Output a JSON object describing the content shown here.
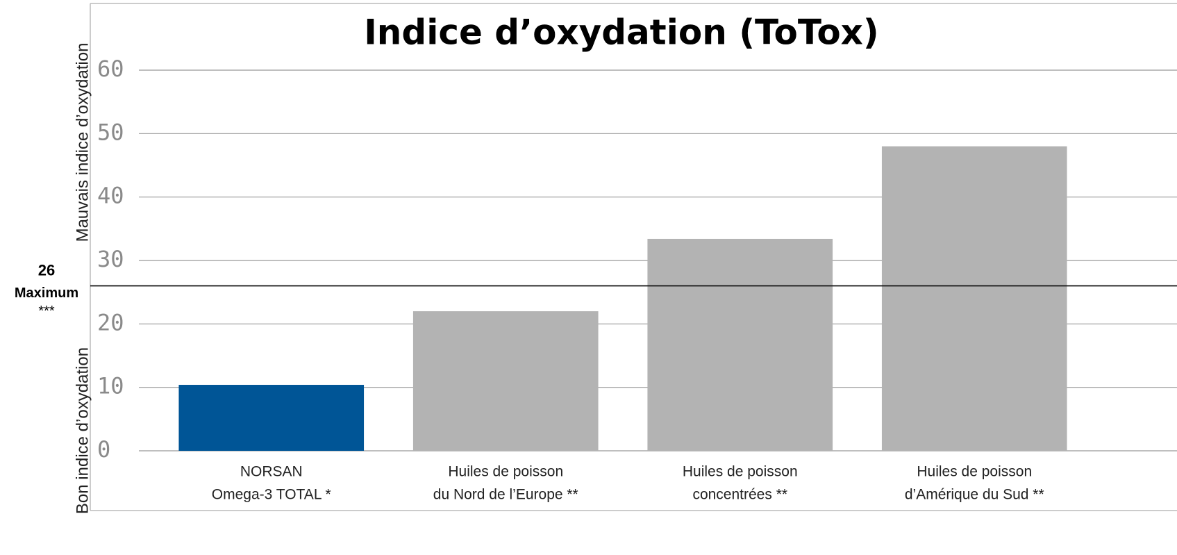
{
  "chart_data": {
    "type": "bar",
    "title": "Indice d’oxydation (ToTox)",
    "categories": [
      [
        "NORSAN",
        "Omega-3 TOTAL *"
      ],
      [
        "Huiles de poisson",
        "du Nord de l’Europe **"
      ],
      [
        "Huiles de poisson",
        "concentrées **"
      ],
      [
        "Huiles de poisson",
        "d’Amérique du Sud **"
      ]
    ],
    "values": [
      10.4,
      22,
      33.4,
      48
    ],
    "colors": [
      "#005596",
      "#b3b3b3",
      "#b3b3b3",
      "#b3b3b3"
    ],
    "ylim": [
      0,
      60
    ],
    "yticks": [
      0,
      10,
      20,
      30,
      40,
      50,
      60
    ],
    "grid": true,
    "y_axis_labels": {
      "upper": "Mauvais indice d’oxydation",
      "lower": "Bon indice d’oxydation"
    },
    "reference_line": {
      "value": 26,
      "label_lines": [
        "Maximum",
        "***"
      ]
    }
  }
}
